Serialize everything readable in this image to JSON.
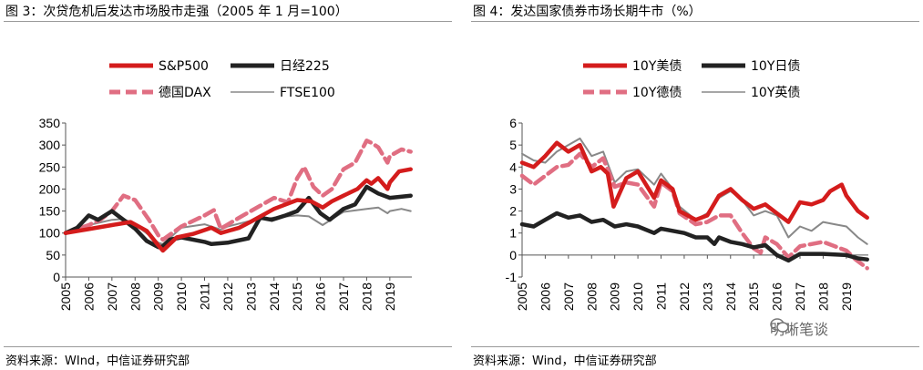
{
  "watermark": "明晰笔谈",
  "chart_data": [
    {
      "type": "line",
      "title": "图 3：次贷危机后发达市场股市走强（2005 年 1 月=100）",
      "source": "资料来源：WInd，中信证券研究部",
      "xlabel": "",
      "ylabel": "",
      "x_ticks": [
        "2005",
        "2006",
        "2007",
        "2008",
        "2009",
        "2010",
        "2011",
        "2012",
        "2013",
        "2014",
        "2015",
        "2016",
        "2017",
        "2018",
        "2019"
      ],
      "y_ticks": [
        "0",
        "50",
        "100",
        "150",
        "200",
        "250",
        "300",
        "350"
      ],
      "xlim": [
        2005,
        2019.95
      ],
      "ylim": [
        0,
        350
      ],
      "legend": "top",
      "series": [
        {
          "name": "S&P500",
          "color": "#d41c1c",
          "style": "solid-thick",
          "x": [
            2005,
            2006,
            2007,
            2007.8,
            2008.5,
            2009.0,
            2009.2,
            2009.8,
            2010.5,
            2011.3,
            2011.7,
            2012.5,
            2013,
            2014,
            2015,
            2015.6,
            2016.1,
            2016.5,
            2017,
            2017.6,
            2018,
            2018.2,
            2018.5,
            2018.9,
            2019,
            2019.4,
            2019.9
          ],
          "y": [
            100,
            109,
            118,
            125,
            105,
            72,
            60,
            90,
            98,
            112,
            100,
            112,
            126,
            155,
            175,
            172,
            158,
            172,
            185,
            200,
            220,
            212,
            225,
            200,
            215,
            240,
            245
          ]
        },
        {
          "name": "日经225",
          "color": "#222222",
          "style": "solid-thick",
          "x": [
            2005,
            2005.5,
            2006,
            2006.4,
            2007,
            2007.5,
            2008,
            2008.5,
            2009.0,
            2009.2,
            2009.5,
            2010,
            2011,
            2011.3,
            2012,
            2012.9,
            2013.4,
            2013.9,
            2014.5,
            2015.0,
            2015.5,
            2016.0,
            2016.4,
            2017,
            2017.5,
            2018.0,
            2018.5,
            2019,
            2019.9
          ],
          "y": [
            100,
            112,
            140,
            130,
            150,
            130,
            110,
            82,
            68,
            70,
            85,
            90,
            80,
            75,
            78,
            88,
            135,
            130,
            140,
            150,
            180,
            145,
            130,
            155,
            165,
            205,
            190,
            180,
            185
          ]
        },
        {
          "name": "德国DAX",
          "color": "#e06e82",
          "style": "dashed-thick",
          "x": [
            2005,
            2006,
            2006.5,
            2007,
            2007.5,
            2008,
            2008.6,
            2009.0,
            2009.2,
            2010,
            2011,
            2011.4,
            2011.7,
            2012.5,
            2013,
            2014,
            2014.6,
            2015.0,
            2015.3,
            2015.7,
            2016.1,
            2016.5,
            2017,
            2017.5,
            2018,
            2018.2,
            2018.5,
            2018.9,
            2019,
            2019.5,
            2019.9
          ],
          "y": [
            100,
            118,
            130,
            150,
            185,
            175,
            130,
            95,
            85,
            115,
            140,
            152,
            110,
            135,
            150,
            180,
            170,
            225,
            250,
            205,
            185,
            200,
            245,
            260,
            310,
            305,
            295,
            260,
            275,
            290,
            285
          ]
        },
        {
          "name": "FTSE100",
          "color": "#888888",
          "style": "solid",
          "x": [
            2005,
            2006,
            2007,
            2007.5,
            2008,
            2008.6,
            2009.0,
            2009.2,
            2010,
            2011,
            2011.7,
            2012,
            2013,
            2014,
            2015,
            2015.5,
            2016.1,
            2016.6,
            2017,
            2018,
            2018.5,
            2018.9,
            2019,
            2019.5,
            2019.9
          ],
          "y": [
            100,
            118,
            130,
            132,
            120,
            95,
            78,
            75,
            112,
            120,
            108,
            115,
            128,
            135,
            140,
            138,
            118,
            135,
            148,
            155,
            158,
            145,
            150,
            155,
            150
          ]
        }
      ]
    },
    {
      "type": "line",
      "title": "图 4：发达国家债券市场长期牛市（%）",
      "source": "资料来源：Wind，中信证券研究部",
      "xlabel": "",
      "ylabel": "",
      "x_ticks": [
        "2005",
        "2006",
        "2007",
        "2008",
        "2009",
        "2010",
        "2011",
        "2012",
        "2013",
        "2014",
        "2015",
        "2016",
        "2017",
        "2018",
        "2019"
      ],
      "y_ticks": [
        "-1",
        "0",
        "1",
        "2",
        "3",
        "4",
        "5",
        "6"
      ],
      "xlim": [
        2005,
        2019.95
      ],
      "ylim": [
        -1,
        6
      ],
      "legend": "top",
      "series": [
        {
          "name": "10Y美债",
          "color": "#d41c1c",
          "style": "solid-thick",
          "x": [
            2005,
            2005.5,
            2006,
            2006.5,
            2007,
            2007.5,
            2008,
            2008.4,
            2008.7,
            2008.95,
            2009.5,
            2010,
            2010.7,
            2011,
            2011.5,
            2011.8,
            2012.5,
            2013,
            2013.5,
            2014,
            2014.5,
            2015,
            2015.5,
            2016,
            2016.5,
            2017,
            2017.5,
            2018,
            2018.3,
            2018.8,
            2019,
            2019.5,
            2019.9
          ],
          "y": [
            4.2,
            4.0,
            4.5,
            5.1,
            4.7,
            5.0,
            3.8,
            4.0,
            3.7,
            2.2,
            3.5,
            3.8,
            2.6,
            3.4,
            3.0,
            2.0,
            1.6,
            1.8,
            2.7,
            3.0,
            2.5,
            2.1,
            2.3,
            1.9,
            1.5,
            2.4,
            2.3,
            2.5,
            2.9,
            3.2,
            2.7,
            2.0,
            1.7
          ]
        },
        {
          "name": "10Y日债",
          "color": "#222222",
          "style": "solid-thick",
          "x": [
            2005,
            2005.5,
            2006,
            2006.5,
            2007,
            2007.5,
            2008,
            2008.5,
            2009,
            2009.5,
            2010,
            2010.7,
            2011,
            2011.5,
            2012,
            2012.5,
            2013,
            2013.3,
            2013.5,
            2014,
            2014.5,
            2015,
            2015.5,
            2016,
            2016.5,
            2017,
            2018,
            2019,
            2019.5,
            2019.9
          ],
          "y": [
            1.4,
            1.3,
            1.6,
            1.9,
            1.7,
            1.8,
            1.5,
            1.6,
            1.3,
            1.4,
            1.3,
            1.0,
            1.2,
            1.1,
            1.0,
            0.8,
            0.8,
            0.5,
            0.8,
            0.6,
            0.5,
            0.35,
            0.45,
            0.0,
            -0.25,
            0.05,
            0.05,
            0.0,
            -0.15,
            -0.2
          ]
        },
        {
          "name": "10Y德债",
          "color": "#e06e82",
          "style": "dashed-thick",
          "x": [
            2005,
            2005.5,
            2006,
            2006.5,
            2007,
            2007.5,
            2008,
            2008.5,
            2009,
            2009.5,
            2010,
            2010.7,
            2011,
            2011.5,
            2011.8,
            2012.5,
            2013,
            2013.5,
            2014,
            2014.5,
            2015.0,
            2015.3,
            2015.5,
            2016,
            2016.5,
            2017,
            2018,
            2018.5,
            2019,
            2019.4,
            2019.9
          ],
          "y": [
            3.6,
            3.2,
            3.6,
            4.0,
            4.1,
            4.6,
            4.0,
            4.4,
            3.1,
            3.3,
            3.2,
            2.2,
            3.3,
            2.9,
            1.9,
            1.4,
            1.5,
            1.8,
            1.8,
            1.0,
            0.3,
            0.1,
            0.8,
            0.5,
            -0.1,
            0.4,
            0.6,
            0.4,
            0.2,
            -0.2,
            -0.6
          ]
        },
        {
          "name": "10Y英债",
          "color": "#888888",
          "style": "solid",
          "x": [
            2005,
            2005.5,
            2006,
            2006.5,
            2007,
            2007.5,
            2008,
            2008.5,
            2009,
            2009.5,
            2010,
            2010.7,
            2011,
            2011.5,
            2011.8,
            2012.5,
            2013,
            2013.5,
            2014,
            2014.5,
            2015,
            2015.5,
            2016,
            2016.5,
            2017,
            2017.5,
            2018,
            2018.5,
            2019,
            2019.5,
            2019.9
          ],
          "y": [
            4.6,
            4.3,
            4.2,
            4.7,
            5.0,
            5.3,
            4.5,
            4.7,
            3.3,
            3.8,
            3.9,
            3.2,
            3.7,
            3.0,
            2.2,
            1.6,
            1.9,
            2.6,
            2.9,
            2.5,
            1.8,
            2.0,
            1.8,
            0.8,
            1.3,
            1.1,
            1.5,
            1.4,
            1.3,
            0.8,
            0.5
          ]
        }
      ]
    }
  ]
}
